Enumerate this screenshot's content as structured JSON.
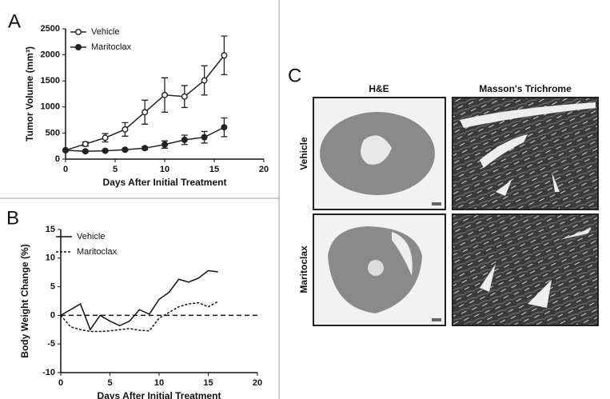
{
  "chart_data": [
    {
      "type": "line",
      "panel": "A",
      "ylabel": "Tumor Volume (mm³)",
      "xlabel": "Days After Initial Treatment",
      "x": [
        0,
        2,
        4,
        6,
        8,
        10,
        12,
        14,
        16
      ],
      "series": [
        {
          "name": "Vehicle",
          "color": "#222222",
          "marker": "open",
          "line_style": "solid",
          "values": [
            170,
            290,
            410,
            570,
            900,
            1230,
            1200,
            1510,
            1990
          ],
          "errors": [
            0,
            40,
            80,
            130,
            230,
            330,
            210,
            280,
            370
          ]
        },
        {
          "name": "Maritoclax",
          "color": "#222222",
          "marker": "filled",
          "line_style": "solid",
          "values": [
            170,
            150,
            160,
            180,
            210,
            280,
            370,
            420,
            610
          ],
          "errors": [
            0,
            20,
            20,
            20,
            30,
            70,
            90,
            110,
            180
          ]
        }
      ],
      "xlim": [
        0,
        20
      ],
      "xticks": [
        0,
        5,
        10,
        15,
        20
      ],
      "ylim": [
        0,
        2500
      ],
      "yticks": [
        0,
        500,
        1000,
        1500,
        2000,
        2500
      ],
      "grid": false
    },
    {
      "type": "line",
      "panel": "B",
      "ylabel": "Body Weight Change (%)",
      "xlabel": "Days After Initial Treatment",
      "x": [
        0,
        1,
        2,
        3,
        4,
        5,
        6,
        7,
        8,
        9,
        10,
        11,
        12,
        13,
        14,
        15,
        16
      ],
      "series": [
        {
          "name": "Vehicle",
          "color": "#111111",
          "marker": "none",
          "line_style": "solid",
          "values": [
            0,
            1,
            2,
            -2.5,
            0,
            -1,
            -1.8,
            -1,
            1,
            0.2,
            2.8,
            4,
            6.3,
            5.8,
            6.5,
            7.8,
            7.6
          ]
        },
        {
          "name": "Maritoclax",
          "color": "#111111",
          "marker": "none",
          "line_style": "dashed",
          "values": [
            0,
            -2,
            -2.5,
            -2.8,
            -2.8,
            -2.7,
            -2.5,
            -2.3,
            -2.6,
            -2.7,
            -0.5,
            0.5,
            1.5,
            2,
            2.2,
            1.5,
            2.4
          ]
        }
      ],
      "xlim": [
        0,
        20
      ],
      "xticks": [
        0,
        5,
        10,
        15,
        20
      ],
      "ylim": [
        -10,
        15
      ],
      "yticks": [
        -10,
        -5,
        0,
        5,
        10,
        15
      ],
      "grid": false
    }
  ],
  "panel_c": {
    "panel": "C",
    "columns": [
      "H&E",
      "Masson's Trichrome"
    ],
    "rows": [
      "Vehicle",
      "Maritoclax"
    ]
  }
}
